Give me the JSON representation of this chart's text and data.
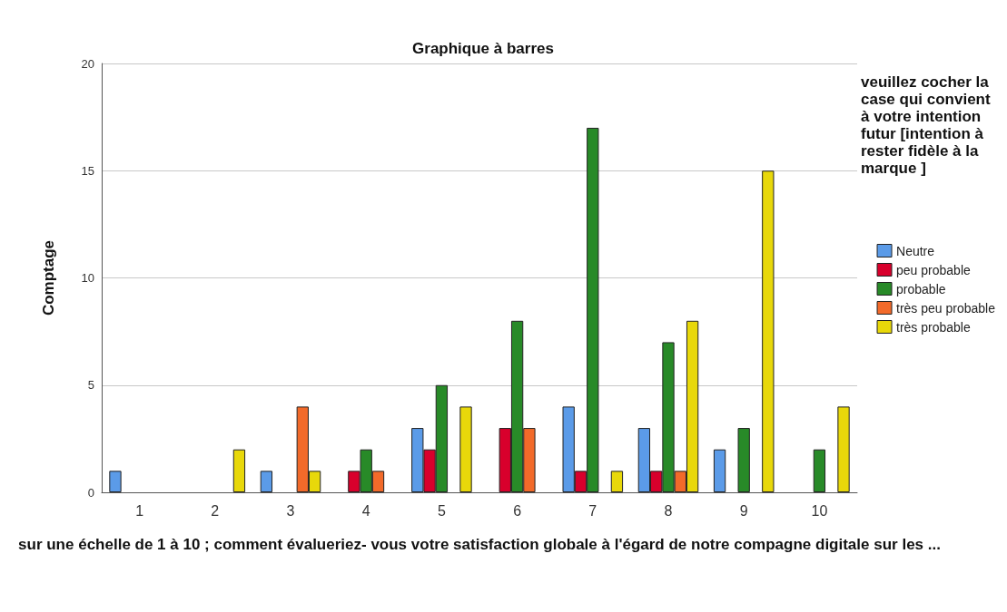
{
  "chart_data": {
    "type": "bar",
    "title": "Graphique à barres",
    "xlabel": "sur une échelle de 1 à 10 ; comment évalueriez- vous votre satisfaction globale à l'égard de notre compagne digitale sur les ...",
    "ylabel": "Comptage",
    "legend_title": "veuillez cocher la case qui convient à votre intention futur [intention à rester fidèle à la marque ]",
    "categories": [
      "1",
      "2",
      "3",
      "4",
      "5",
      "6",
      "7",
      "8",
      "9",
      "10"
    ],
    "series": [
      {
        "name": "Neutre",
        "color": "#5b9be8",
        "values": [
          1,
          null,
          1,
          null,
          3,
          null,
          4,
          3,
          2,
          null
        ]
      },
      {
        "name": "peu probable",
        "color": "#d8002c",
        "values": [
          null,
          null,
          null,
          1,
          2,
          3,
          1,
          1,
          null,
          null
        ]
      },
      {
        "name": "probable",
        "color": "#288a28",
        "values": [
          null,
          null,
          null,
          2,
          5,
          8,
          17,
          7,
          3,
          2
        ]
      },
      {
        "name": "très peu probable",
        "color": "#f26a2a",
        "values": [
          null,
          null,
          4,
          1,
          null,
          3,
          null,
          1,
          null,
          null
        ]
      },
      {
        "name": "très probable",
        "color": "#e8d80a",
        "values": [
          null,
          2,
          1,
          null,
          4,
          null,
          1,
          8,
          15,
          4
        ]
      }
    ],
    "ylim": [
      0,
      20
    ],
    "yticks": [
      0,
      5,
      10,
      15,
      20
    ],
    "grid": "y",
    "legend": "right"
  }
}
